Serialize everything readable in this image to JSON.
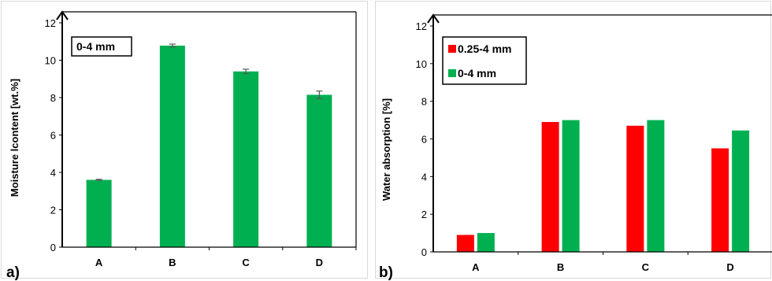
{
  "chart_data": [
    {
      "type": "bar",
      "panel_label": "a)",
      "ylabel": "Moisture lcontent [wt.%]",
      "xlabel": "",
      "categories": [
        "A",
        "B",
        "C",
        "D"
      ],
      "ylim": [
        0,
        12
      ],
      "yticks": [
        0,
        2,
        4,
        6,
        8,
        10,
        12
      ],
      "series": [
        {
          "name": "0-4 mm",
          "color": "#00b050",
          "values": [
            3.6,
            10.78,
            9.4,
            8.15
          ],
          "errors": [
            0.03,
            0.08,
            0.12,
            0.2
          ]
        }
      ],
      "legend": "top-left",
      "grid": false
    },
    {
      "type": "bar",
      "panel_label": "b)",
      "ylabel": "Water absorption [%]",
      "xlabel": "",
      "categories": [
        "A",
        "B",
        "C",
        "D"
      ],
      "ylim": [
        0,
        12
      ],
      "yticks": [
        0,
        2,
        4,
        6,
        8,
        10,
        12
      ],
      "series": [
        {
          "name": "0.25-4 mm",
          "color": "#ff0000",
          "values": [
            0.9,
            6.9,
            6.7,
            5.5
          ]
        },
        {
          "name": "0-4 mm",
          "color": "#00b050",
          "values": [
            1.0,
            7.0,
            7.0,
            6.45
          ]
        }
      ],
      "legend": "top-left",
      "grid": false
    }
  ]
}
